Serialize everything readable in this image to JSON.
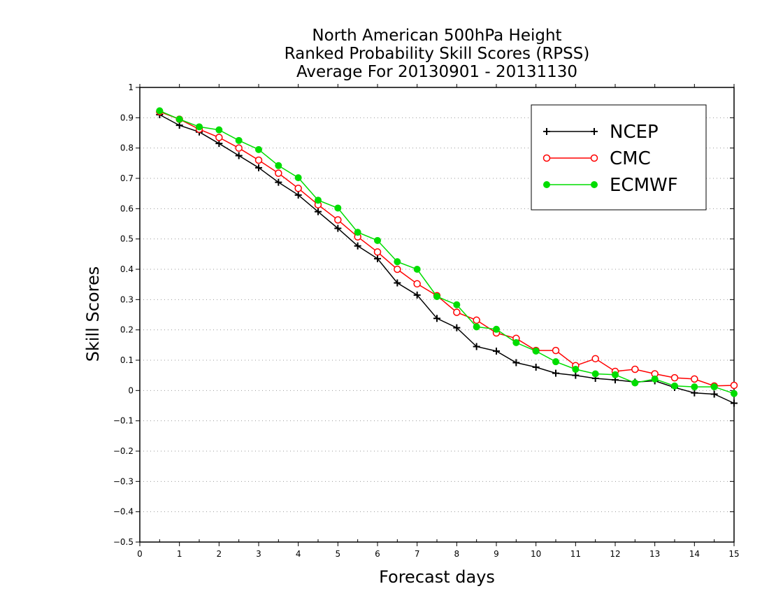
{
  "chart_data": {
    "type": "line",
    "title_lines": [
      "North American 500hPa Height",
      "Ranked Probability Skill Scores (RPSS)",
      "Average For 20130901 - 20131130"
    ],
    "xlabel": "Forecast days",
    "ylabel": "Skill Scores",
    "xlim": [
      0,
      15
    ],
    "ylim": [
      -0.5,
      1
    ],
    "x_ticks": [
      0,
      1,
      2,
      3,
      4,
      5,
      6,
      7,
      8,
      9,
      10,
      11,
      12,
      13,
      14,
      15
    ],
    "y_ticks": [
      1,
      0.9,
      0.8,
      0.7,
      0.6,
      0.5,
      0.4,
      0.3,
      0.2,
      0.1,
      0,
      -0.1,
      -0.2,
      -0.3,
      -0.4,
      -0.5
    ],
    "x_tick_labels": [
      "0",
      "1",
      "2",
      "3",
      "4",
      "5",
      "6",
      "7",
      "8",
      "9",
      "10",
      "11",
      "12",
      "13",
      "14",
      "15"
    ],
    "y_tick_labels": [
      "1",
      "0.9",
      "0.8",
      "0.7",
      "0.6",
      "0.5",
      "0.4",
      "0.3",
      "0.2",
      "0.1",
      "0",
      "−0.1",
      "−0.2",
      "−0.3",
      "−0.4",
      "−0.5"
    ],
    "grid": true,
    "legend_position": "top-right",
    "x": [
      0.5,
      1,
      1.5,
      2,
      2.5,
      3,
      3.5,
      4,
      4.5,
      5,
      5.5,
      6,
      6.5,
      7,
      7.5,
      8,
      8.5,
      9,
      9.5,
      10,
      10.5,
      11,
      11.5,
      12,
      12.5,
      13,
      13.5,
      14,
      14.5,
      15
    ],
    "series": [
      {
        "name": "NCEP",
        "color": "#000000",
        "marker": "plus",
        "values": [
          0.91,
          0.875,
          0.853,
          0.815,
          0.775,
          0.735,
          0.687,
          0.645,
          0.59,
          0.535,
          0.477,
          0.435,
          0.355,
          0.315,
          0.238,
          0.207,
          0.145,
          0.13,
          0.092,
          0.077,
          0.057,
          0.05,
          0.04,
          0.035,
          0.028,
          0.032,
          0.01,
          -0.008,
          -0.012,
          -0.042
        ]
      },
      {
        "name": "CMC",
        "color": "#ff0000",
        "marker": "open-circle",
        "values": [
          0.92,
          0.895,
          0.862,
          0.835,
          0.8,
          0.76,
          0.717,
          0.667,
          0.613,
          0.563,
          0.507,
          0.457,
          0.4,
          0.352,
          0.313,
          0.258,
          0.232,
          0.19,
          0.172,
          0.132,
          0.132,
          0.082,
          0.105,
          0.063,
          0.07,
          0.055,
          0.042,
          0.038,
          0.015,
          0.017
        ]
      },
      {
        "name": "ECMWF",
        "color": "#00dd00",
        "marker": "filled-circle",
        "values": [
          0.923,
          0.895,
          0.87,
          0.86,
          0.825,
          0.795,
          0.742,
          0.702,
          0.628,
          0.602,
          0.522,
          0.495,
          0.425,
          0.4,
          0.31,
          0.283,
          0.21,
          0.202,
          0.158,
          0.13,
          0.095,
          0.07,
          0.055,
          0.052,
          0.025,
          0.038,
          0.015,
          0.012,
          0.012,
          -0.01
        ]
      }
    ]
  }
}
